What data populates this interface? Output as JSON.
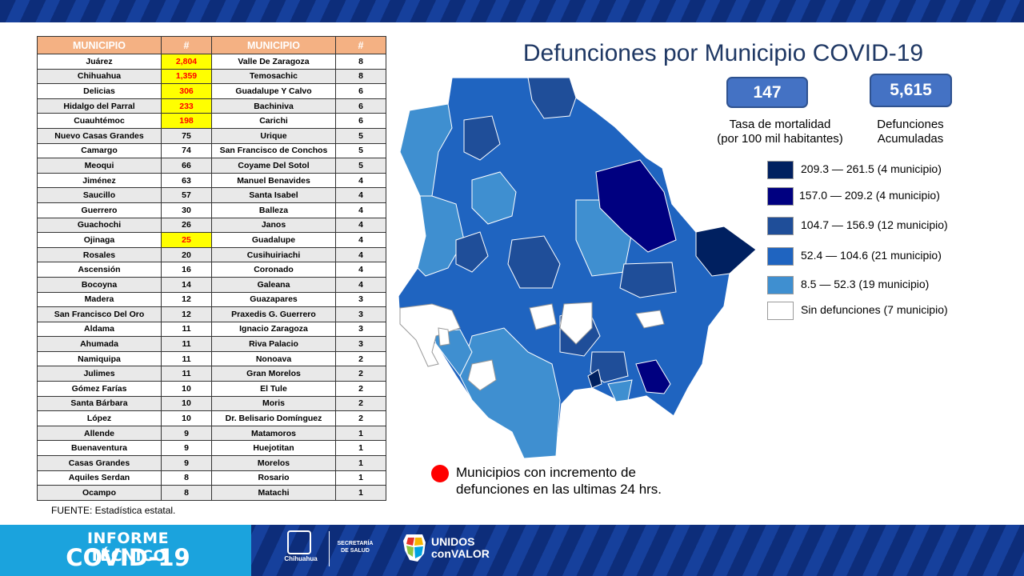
{
  "table": {
    "headers": [
      "MUNICIPIO",
      "#",
      "MUNICIPIO",
      "#"
    ],
    "rows": [
      [
        "Juárez",
        "2,804",
        "Valle De Zaragoza",
        "8"
      ],
      [
        "Chihuahua",
        "1,359",
        "Temosachic",
        "8"
      ],
      [
        "Delicias",
        "306",
        "Guadalupe Y Calvo",
        "6"
      ],
      [
        "Hidalgo del Parral",
        "233",
        "Bachiniva",
        "6"
      ],
      [
        "Cuauhtémoc",
        "198",
        "Carichi",
        "6"
      ],
      [
        "Nuevo Casas Grandes",
        "75",
        "Urique",
        "5"
      ],
      [
        "Camargo",
        "74",
        "San Francisco de Conchos",
        "5"
      ],
      [
        "Meoqui",
        "66",
        "Coyame Del Sotol",
        "5"
      ],
      [
        "Jiménez",
        "63",
        "Manuel Benavides",
        "4"
      ],
      [
        "Saucillo",
        "57",
        "Santa Isabel",
        "4"
      ],
      [
        "Guerrero",
        "30",
        "Balleza",
        "4"
      ],
      [
        "Guachochi",
        "26",
        "Janos",
        "4"
      ],
      [
        "Ojinaga",
        "25",
        "Guadalupe",
        "4"
      ],
      [
        "Rosales",
        "20",
        "Cusihuiriachi",
        "4"
      ],
      [
        "Ascensión",
        "16",
        "Coronado",
        "4"
      ],
      [
        "Bocoyna",
        "14",
        "Galeana",
        "4"
      ],
      [
        "Madera",
        "12",
        "Guazapares",
        "3"
      ],
      [
        "San Francisco Del Oro",
        "12",
        "Praxedis G. Guerrero",
        "3"
      ],
      [
        "Aldama",
        "11",
        "Ignacio Zaragoza",
        "3"
      ],
      [
        "Ahumada",
        "11",
        "Riva Palacio",
        "3"
      ],
      [
        "Namiquipa",
        "11",
        "Nonoava",
        "2"
      ],
      [
        "Julimes",
        "11",
        "Gran Morelos",
        "2"
      ],
      [
        "Gómez Farías",
        "10",
        "El Tule",
        "2"
      ],
      [
        "Santa Bárbara",
        "10",
        "Moris",
        "2"
      ],
      [
        "López",
        "10",
        "Dr. Belisario Domínguez",
        "2"
      ],
      [
        "Allende",
        "9",
        "Matamoros",
        "1"
      ],
      [
        "Buenaventura",
        "9",
        "Huejotitan",
        "1"
      ],
      [
        "Casas Grandes",
        "9",
        "Morelos",
        "1"
      ],
      [
        "Aquiles Serdan",
        "8",
        "Rosario",
        "1"
      ],
      [
        "Ocampo",
        "8",
        "Matachi",
        "1"
      ]
    ],
    "highlighted": [
      "Juárez",
      "Chihuahua",
      "Delicias",
      "Hidalgo del Parral",
      "Cuauhtémoc",
      "Ojinaga"
    ],
    "highlight_color": "#ffff00",
    "header_color": "#f4b183"
  },
  "source": "FUENTE:  Estadística estatal.",
  "map": {
    "title": "Defunciones por Municipio COVID-19",
    "stats": {
      "rate_value": "147",
      "rate_label_1": "Tasa de mortalidad",
      "rate_label_2": "(por 100 mil habitantes)",
      "total_value": "5,615",
      "total_label_1": "Defunciones",
      "total_label_2": "Acumuladas"
    },
    "legend": [
      {
        "label": "209.3 — 261.5 (4 municipio)",
        "color": "#002060"
      },
      {
        "label": "157.0 — 209.2 (4 municipio)",
        "color": "#000080"
      },
      {
        "label": "104.7 — 156.9 (12 municipio)",
        "color": "#1f4e99"
      },
      {
        "label": "52.4 — 104.6 (21 municipio)",
        "color": "#1f64c0"
      },
      {
        "label": "8.5 — 52.3 (19 municipio)",
        "color": "#3f8fd0"
      },
      {
        "label": "Sin defunciones (7 municipio)",
        "color": "#ffffff"
      }
    ],
    "increment_note_1": "Municipios con incremento de",
    "increment_note_2": "defunciones en las ultimas 24 hrs.",
    "increment_color": "#ff0000"
  },
  "banner": {
    "line1": "INFORME TÉCNICO",
    "line2": "COVID-19",
    "state_name": "Chihuahua",
    "secretaria_1": "SECRETARÍA",
    "secretaria_2": "DE SALUD",
    "unidos_1": "UNIDOS",
    "unidos_2": "conVALOR"
  }
}
